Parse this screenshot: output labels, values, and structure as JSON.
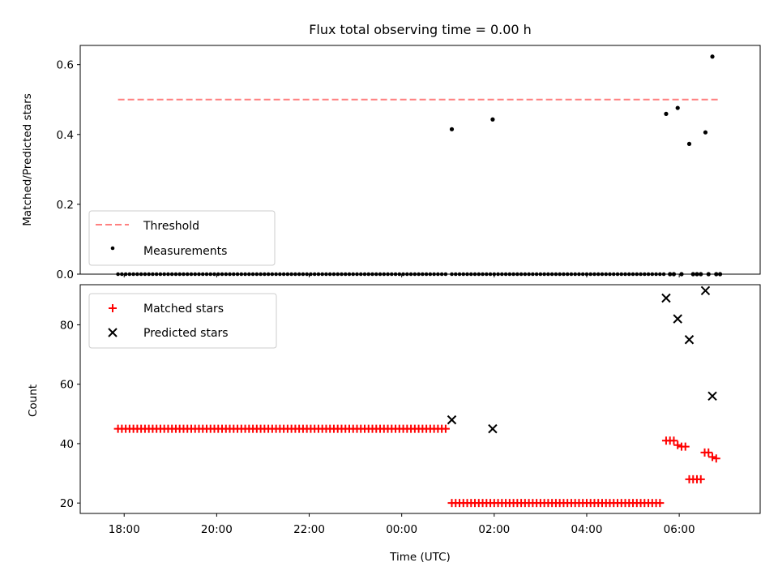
{
  "chart_data": [
    {
      "type": "scatter",
      "title": "Flux total observing time = 0.00 h",
      "xlabel": "",
      "ylabel": "Matched/Predicted stars",
      "ylim": [
        0,
        0.655
      ],
      "yticks": [
        0.0,
        0.2,
        0.4,
        0.6
      ],
      "ytick_labels": [
        "0.0",
        "0.2",
        "0.4",
        "0.6"
      ],
      "legend_position": "lower-left",
      "legend": [
        "Threshold",
        "Measurements"
      ],
      "threshold": {
        "name": "Threshold",
        "value": 0.5,
        "x_start": "17:52",
        "x_end": "06:52",
        "color": "#ff8080"
      },
      "measurements": {
        "name": "Measurements",
        "color": "#000000",
        "zero_run_1": {
          "from": "17:52",
          "to": "00:59",
          "step_minutes": 5
        },
        "zero_run_2": {
          "from": "01:05",
          "to": "05:43",
          "step_minutes": 5
        },
        "points": [
          {
            "x": "01:05",
            "y": 0.415
          },
          {
            "x": "01:58",
            "y": 0.443
          },
          {
            "x": "05:43",
            "y": 0.459
          },
          {
            "x": "05:58",
            "y": 0.476
          },
          {
            "x": "06:13",
            "y": 0.373
          },
          {
            "x": "06:34",
            "y": 0.406
          },
          {
            "x": "06:43",
            "y": 0.623
          },
          {
            "x": "05:48",
            "y": 0
          },
          {
            "x": "05:53",
            "y": 0
          },
          {
            "x": "06:03",
            "y": 0
          },
          {
            "x": "06:18",
            "y": 0
          },
          {
            "x": "06:23",
            "y": 0
          },
          {
            "x": "06:28",
            "y": 0
          },
          {
            "x": "06:38",
            "y": 0
          },
          {
            "x": "06:48",
            "y": 0
          },
          {
            "x": "06:53",
            "y": 0
          }
        ]
      }
    },
    {
      "type": "scatter",
      "title": "",
      "xlabel": "Time (UTC)",
      "ylabel": "Count",
      "ylim": [
        16.5,
        93.5
      ],
      "yticks": [
        20,
        40,
        60,
        80
      ],
      "ytick_labels": [
        "20",
        "40",
        "60",
        "80"
      ],
      "xlim": [
        "17:03",
        "07:45"
      ],
      "xticks": [
        "18:00",
        "20:00",
        "22:00",
        "00:00",
        "02:00",
        "04:00",
        "06:00"
      ],
      "xtick_labels": [
        "18:00",
        "20:00",
        "22:00",
        "00:00",
        "02:00",
        "04:00",
        "06:00"
      ],
      "legend_position": "upper-left",
      "legend": [
        "Matched stars",
        "Predicted stars"
      ],
      "matched": {
        "name": "Matched stars",
        "color": "#ff0000",
        "run_1": {
          "from": "17:52",
          "to": "00:59",
          "step_minutes": 5,
          "y": 45
        },
        "run_2": {
          "from": "01:05",
          "to": "05:38",
          "step_minutes": 5,
          "y": 20
        },
        "points": [
          {
            "x": "05:43",
            "y": 41
          },
          {
            "x": "05:48",
            "y": 41
          },
          {
            "x": "05:53",
            "y": 41
          },
          {
            "x": "05:58",
            "y": 39.5
          },
          {
            "x": "06:03",
            "y": 39
          },
          {
            "x": "06:08",
            "y": 39
          },
          {
            "x": "06:13",
            "y": 28
          },
          {
            "x": "06:18",
            "y": 28
          },
          {
            "x": "06:23",
            "y": 28
          },
          {
            "x": "06:28",
            "y": 28
          },
          {
            "x": "06:33",
            "y": 37
          },
          {
            "x": "06:38",
            "y": 37
          },
          {
            "x": "06:43",
            "y": 35.5
          },
          {
            "x": "06:48",
            "y": 35
          }
        ]
      },
      "predicted": {
        "name": "Predicted stars",
        "color": "#000000",
        "points": [
          {
            "x": "01:05",
            "y": 48
          },
          {
            "x": "01:58",
            "y": 45
          },
          {
            "x": "05:43",
            "y": 89
          },
          {
            "x": "05:58",
            "y": 82
          },
          {
            "x": "06:13",
            "y": 75
          },
          {
            "x": "06:34",
            "y": 91.5
          },
          {
            "x": "06:43",
            "y": 56
          }
        ]
      }
    }
  ]
}
